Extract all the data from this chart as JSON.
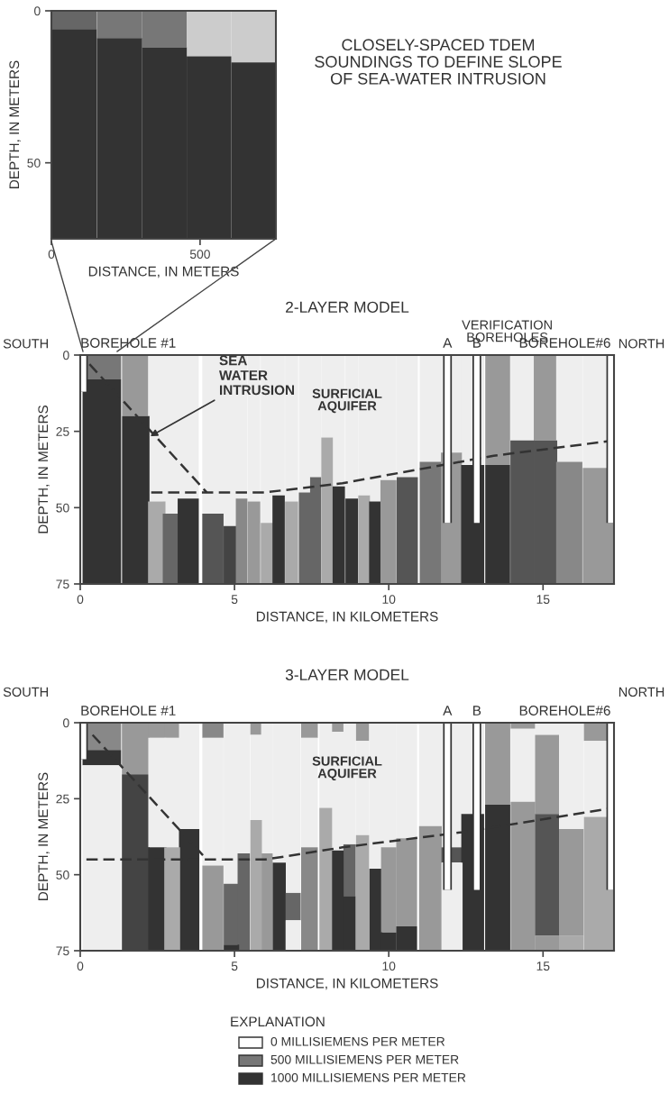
{
  "chart_data": [
    {
      "type": "bar",
      "stacked": true,
      "xlabel": "DISTANCE, IN METERS",
      "ylabel": "DEPTH, IN METERS",
      "x": [
        76,
        229,
        380,
        530,
        680
      ],
      "xlim": [
        0,
        755
      ],
      "xticks": [
        0,
        500
      ],
      "ylim": [
        75,
        0
      ],
      "yticks": [
        0,
        50
      ],
      "annotations": [
        "CLOSELY-SPACED TDEM\nSOUNDINGS TO DEFINE SLOPE\nOF SEA-WATER INTRUSION"
      ],
      "series": [
        {
          "values": [
            6,
            9,
            12,
            15,
            17
          ],
          "colors": [
            "#666666",
            "#777777",
            "#777777",
            "#cccccc",
            "#cccccc"
          ]
        },
        {
          "values": [
            69,
            66,
            63,
            60,
            58
          ],
          "colors": [
            "#333333",
            "#333333",
            "#333333",
            "#333333",
            "#333333"
          ]
        }
      ]
    },
    {
      "type": "bar",
      "stacked": true,
      "title": "2-LAYER MODEL",
      "xlabel": "DISTANCE, IN KILOMETERS",
      "ylabel": "DEPTH, IN METERS",
      "x": [
        0.7,
        1.8,
        2.48,
        2.93,
        3.5,
        4.3,
        4.88,
        5.23,
        5.63,
        6.05,
        6.43,
        6.85,
        7.28,
        7.63,
        8.0,
        8.38,
        8.8,
        9.2,
        9.56,
        9.99,
        10.6,
        11.36,
        12.03,
        12.72,
        13.53,
        14.33,
        15.08,
        15.85,
        16.78
      ],
      "xlim": [
        0,
        17.3
      ],
      "xticks": [
        0,
        5,
        10,
        15
      ],
      "ylim": [
        75,
        0
      ],
      "yticks": [
        0,
        25,
        50,
        75
      ],
      "annotations": [
        "SOUTH",
        "NORTH",
        {
          "text": "SEA\nWATER\nINTRUSION",
          "x": 2.2,
          "y": 27
        },
        "SURFICIAL\nAQUIFER",
        "VERIFICATION\nBOREHOLES",
        "BOREHOLE #1",
        "A",
        "B",
        "BOREHOLE#6"
      ],
      "series": [
        {
          "values": [
            8,
            20,
            48,
            52,
            47,
            52,
            56,
            47,
            48,
            55,
            46,
            48,
            45,
            40,
            27,
            43,
            47,
            46,
            48,
            41,
            40,
            35,
            32,
            36,
            36,
            28,
            28,
            35,
            37
          ],
          "colors": [
            "#777777",
            "#999999",
            "#eeeeee",
            "#eeeeee",
            "#eeeeee",
            "#eeeeee",
            "#eeeeee",
            "#eeeeee",
            "#eeeeee",
            "#eeeeee",
            "#eeeeee",
            "#eeeeee",
            "#eeeeee",
            "#eeeeee",
            "#eeeeee",
            "#eeeeee",
            "#eeeeee",
            "#eeeeee",
            "#eeeeee",
            "#eeeeee",
            "#eeeeee",
            "#eeeeee",
            "#eeeeee",
            "#eeeeee",
            "#999999",
            "#eeeeee",
            "#999999",
            "#eeeeee",
            "#eeeeee"
          ]
        },
        {
          "values": [
            67,
            55,
            27,
            23,
            28,
            23,
            19,
            28,
            27,
            20,
            29,
            27,
            30,
            35,
            48,
            32,
            28,
            29,
            27,
            34,
            35,
            40,
            43,
            39,
            39,
            47,
            47,
            40,
            38
          ],
          "colors": [
            "#333333",
            "#333333",
            "#aaaaaa",
            "#666666",
            "#333333",
            "#555555",
            "#444444",
            "#888888",
            "#999999",
            "#aaaaaa",
            "#333333",
            "#aaaaaa",
            "#666666",
            "#666666",
            "#aaaaaa",
            "#333333",
            "#333333",
            "#aaaaaa",
            "#333333",
            "#999999",
            "#555555",
            "#777777",
            "#999999",
            "#333333",
            "#333333",
            "#555555",
            "#555555",
            "#888888",
            "#999999"
          ]
        },
        {
          "type": "line",
          "x": [
            0.3,
            4.1
          ],
          "values": [
            3,
            45
          ],
          "color": "#333333",
          "line_style": "dashed"
        },
        {
          "type": "line",
          "x": [
            2.3,
            6,
            8.5,
            13.4,
            17.3
          ],
          "values": [
            45,
            45,
            42,
            33,
            28
          ],
          "color": "#333333",
          "line_style": "dashed"
        }
      ]
    },
    {
      "type": "bar",
      "stacked": true,
      "title": "3-LAYER MODEL",
      "xlabel": "DISTANCE, IN KILOMETERS",
      "ylabel": "DEPTH, IN METERS",
      "x": [
        0.7,
        1.8,
        2.5,
        2.98,
        3.53,
        4.3,
        4.9,
        5.3,
        5.7,
        6.05,
        6.45,
        6.9,
        7.43,
        7.98,
        8.35,
        8.73,
        9.15,
        9.58,
        10.0,
        10.58,
        11.35,
        12.05,
        12.72,
        13.53,
        14.35,
        15.13,
        15.9,
        16.8
      ],
      "xlim": [
        0,
        17.3
      ],
      "xticks": [
        0,
        5,
        10,
        15
      ],
      "ylim": [
        75,
        0
      ],
      "yticks": [
        0,
        25,
        50,
        75
      ],
      "annotations": [
        "SOUTH",
        "NORTH",
        "SURFICIAL\nAQUIFER",
        "BOREHOLE #1",
        "A",
        "B",
        "BOREHOLE#6",
        "EXPLANATION",
        "0 MILLISIEMENS PER METER",
        "500 MILLISIEMENS PER METER",
        "1000 MILLISIEMENS PER METER"
      ],
      "series": [
        {
          "values": [
            9,
            17,
            5,
            5,
            35,
            5,
            53,
            43,
            4,
            43,
            46,
            56,
            5,
            28,
            3,
            40,
            6,
            48,
            41,
            38,
            34,
            41,
            30,
            27,
            2,
            4,
            35,
            6
          ],
          "colors": [
            "#888888",
            "#999999",
            "#999999",
            "#999999",
            "#eeeeee",
            "#888888",
            "#eeeeee",
            "#eeeeee",
            "#999999",
            "#eeeeee",
            "#eeeeee",
            "#eeeeee",
            "#999999",
            "#eeeeee",
            "#999999",
            "#eeeeee",
            "#999999",
            "#eeeeee",
            "#eeeeee",
            "#eeeeee",
            "#eeeeee",
            "#eeeeee",
            "#eeeeee",
            "#999999",
            "#999999",
            "#eeeeee",
            "#eeeeee",
            "#999999"
          ]
        },
        {
          "values": [
            5,
            58,
            36,
            36,
            40,
            42,
            20,
            32,
            28,
            32,
            29,
            9,
            36,
            47,
            39,
            17,
            31,
            27,
            28,
            29,
            41,
            5,
            45,
            48,
            24,
            26,
            35,
            25
          ],
          "colors": [
            "#333333",
            "#444444",
            "#eeeeee",
            "#eeeeee",
            "#333333",
            "#eeeeee",
            "#666666",
            "#666666",
            "#eeeeee",
            "#999999",
            "#333333",
            "#666666",
            "#eeeeee",
            "#aaaaaa",
            "#eeeeee",
            "#666666",
            "#eeeeee",
            "#333333",
            "#999999",
            "#999999",
            "#999999",
            "#555555",
            "#333333",
            "#333333",
            "#eeeeee",
            "#999999",
            "#999999",
            "#eeeeee"
          ]
        },
        {
          "values": [
            61,
            null,
            34,
            34,
            null,
            28,
            2,
            null,
            43,
            null,
            null,
            10,
            34,
            null,
            33,
            18,
            38,
            null,
            6,
            8,
            null,
            29,
            null,
            null,
            49,
            40,
            5,
            44
          ],
          "colors": [
            "#eeeeee",
            "#eeeeee",
            "#333333",
            "#aaaaaa",
            "#eeeeee",
            "#999999",
            "#333333",
            "#eeeeee",
            "#aaaaaa",
            "#eeeeee",
            "#eeeeee",
            "#eeeeee",
            "#888888",
            "#eeeeee",
            "#333333",
            "#333333",
            "#aaaaaa",
            "#eeeeee",
            "#333333",
            "#333333",
            "#eeeeee",
            "#eeeeee",
            "#eeeeee",
            "#eeeeee",
            "#999999",
            "#555555",
            "#aaaaaa",
            "#aaaaaa"
          ]
        },
        {
          "values": [
            null,
            null,
            null,
            null,
            null,
            null,
            null,
            null,
            null,
            null,
            null,
            null,
            null,
            null,
            null,
            null,
            null,
            null,
            null,
            null,
            null,
            null,
            null,
            null,
            null,
            5,
            null,
            null
          ],
          "colors": [
            "#eeeeee",
            "#eeeeee",
            "#eeeeee",
            "#eeeeee",
            "#eeeeee",
            "#eeeeee",
            "#eeeeee",
            "#eeeeee",
            "#eeeeee",
            "#eeeeee",
            "#eeeeee",
            "#eeeeee",
            "#eeeeee",
            "#eeeeee",
            "#eeeeee",
            "#eeeeee",
            "#eeeeee",
            "#eeeeee",
            "#eeeeee",
            "#eeeeee",
            "#eeeeee",
            "#eeeeee",
            "#eeeeee",
            "#eeeeee",
            "#eeeeee",
            "#999999",
            "#eeeeee",
            "#eeeeee"
          ]
        },
        {
          "type": "line",
          "x": [
            0.4,
            4.1
          ],
          "values": [
            4,
            45
          ],
          "color": "#333333",
          "line_style": "dashed"
        },
        {
          "type": "line",
          "x": [
            0.2,
            6,
            8.5,
            12.4,
            17.3
          ],
          "values": [
            45,
            45,
            41,
            36,
            28
          ],
          "color": "#333333",
          "line_style": "dashed"
        }
      ]
    }
  ]
}
